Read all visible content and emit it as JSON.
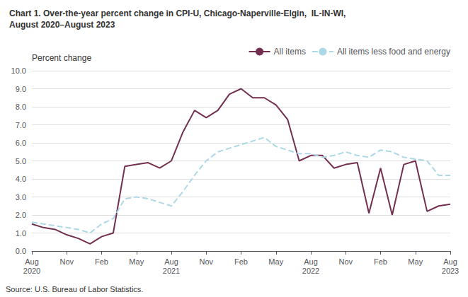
{
  "chart_data": {
    "type": "line",
    "title": "Chart 1. Over-the-year percent change in CPI-U, Chicago-Naperville-Elgin,  IL-IN-WI,",
    "subtitle": "August 2020–August 2023",
    "ylabel": "Percent change",
    "annotations": [
      "Source: U.S. Bureau of Labor Statistics."
    ],
    "categories": [
      "Aug\n2020",
      null,
      null,
      "Nov",
      null,
      null,
      "Feb",
      null,
      null,
      "May",
      null,
      null,
      "Aug\n2021",
      null,
      null,
      "Nov",
      null,
      null,
      "Feb",
      null,
      null,
      "May",
      null,
      null,
      "Aug\n2022",
      null,
      null,
      "Nov",
      null,
      null,
      "Feb",
      null,
      null,
      "May",
      null,
      null,
      "Aug\n2023"
    ],
    "series": [
      {
        "name": "All items",
        "color": "#722F4F",
        "line_style": "solid",
        "values": [
          1.5,
          1.3,
          1.2,
          0.9,
          0.7,
          0.4,
          0.8,
          1.0,
          4.7,
          4.8,
          4.9,
          4.6,
          5.0,
          6.6,
          7.8,
          7.4,
          7.8,
          8.7,
          9.0,
          8.5,
          8.5,
          8.1,
          7.3,
          5.0,
          5.3,
          5.3,
          4.6,
          4.8,
          4.9,
          2.1,
          4.6,
          2.0,
          4.8,
          5.0,
          2.2,
          2.5,
          2.6
        ]
      },
      {
        "name": "All items less food and energy",
        "color": "#ADD8E6",
        "line_style": "dashed",
        "values": [
          1.6,
          1.5,
          1.4,
          1.3,
          1.2,
          1.0,
          1.5,
          1.8,
          2.9,
          3.0,
          2.9,
          2.7,
          2.5,
          3.3,
          4.2,
          5.0,
          5.5,
          5.7,
          5.9,
          6.1,
          6.3,
          5.8,
          5.6,
          5.4,
          5.4,
          5.2,
          5.3,
          5.5,
          5.3,
          5.2,
          5.6,
          5.5,
          5.2,
          5.1,
          5.0,
          4.2,
          4.2
        ]
      }
    ],
    "ylim": [
      0.0,
      10.0
    ],
    "yticks": [
      {
        "value": 0,
        "label": "0.0"
      },
      {
        "value": 1,
        "label": "1.0"
      },
      {
        "value": 2,
        "label": "2.0"
      },
      {
        "value": 3,
        "label": "3.0"
      },
      {
        "value": 4,
        "label": "4.0"
      },
      {
        "value": 5,
        "label": "5.0"
      },
      {
        "value": 6,
        "label": "6.0"
      },
      {
        "value": 7,
        "label": "7.0"
      },
      {
        "value": 8,
        "label": "8.0"
      },
      {
        "value": 9,
        "label": "9.0"
      },
      {
        "value": 10,
        "label": "10.0"
      }
    ],
    "grid": true,
    "legend": "top"
  }
}
